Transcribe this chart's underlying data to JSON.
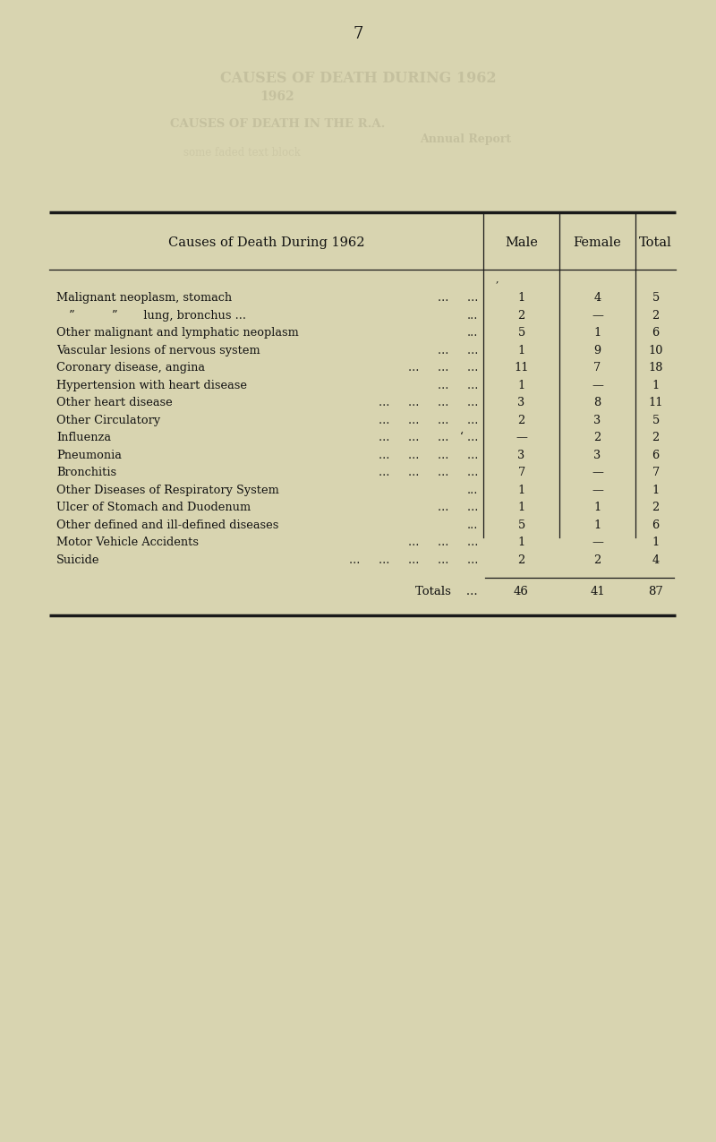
{
  "page_number": "7",
  "title": "Causes of Death During 1962",
  "col_headers": [
    "Male",
    "Female",
    "Total"
  ],
  "rows": [
    {
      "cause": "Malignant neoplasm, stomach",
      "trailing_dots": "...     ...",
      "male": "1",
      "female": "4",
      "total": "5"
    },
    {
      "cause": "”          ”       lung, bronchus ...",
      "trailing_dots": "...",
      "male": "2",
      "female": "—",
      "total": "2"
    },
    {
      "cause": "Other malignant and lymphatic neoplasm",
      "trailing_dots": "...",
      "male": "5",
      "female": "1",
      "total": "6"
    },
    {
      "cause": "Vascular lesions of nervous system",
      "trailing_dots": "...     ...",
      "male": "1",
      "female": "9",
      "total": "10"
    },
    {
      "cause": "Coronary disease, angina",
      "trailing_dots": "...     ...     ...",
      "male": "11",
      "female": "7",
      "total": "18"
    },
    {
      "cause": "Hypertension with heart disease",
      "trailing_dots": "...     ...",
      "male": "1",
      "female": "—",
      "total": "1"
    },
    {
      "cause": "Other heart disease",
      "trailing_dots": "...     ...     ...     ...",
      "male": "3",
      "female": "8",
      "total": "11"
    },
    {
      "cause": "Other Circulatory",
      "trailing_dots": "...     ...     ...     ...",
      "male": "2",
      "female": "3",
      "total": "5"
    },
    {
      "cause": "Influenza",
      "trailing_dots": "...     ...     ...   ‘ ...",
      "male": "—",
      "female": "2",
      "total": "2"
    },
    {
      "cause": "Pneumonia",
      "trailing_dots": "...     ...     ...     ...",
      "male": "3",
      "female": "3",
      "total": "6"
    },
    {
      "cause": "Bronchitis",
      "trailing_dots": "...     ...     ...     ...",
      "male": "7",
      "female": "—",
      "total": "7"
    },
    {
      "cause": "Other Diseases of Respiratory System",
      "trailing_dots": "...",
      "male": "1",
      "female": "—",
      "total": "1"
    },
    {
      "cause": "Ulcer of Stomach and Duodenum",
      "trailing_dots": "...     ...",
      "male": "1",
      "female": "1",
      "total": "2"
    },
    {
      "cause": "Other defined and ill-defined diseases",
      "trailing_dots": "...",
      "male": "5",
      "female": "1",
      "total": "6"
    },
    {
      "cause": "Motor Vehicle Accidents",
      "trailing_dots": "...     ...     ...",
      "male": "1",
      "female": "—",
      "total": "1"
    },
    {
      "cause": "Suicide",
      "trailing_dots": "...     ...     ...     ...     ...",
      "male": "2",
      "female": "2",
      "total": "4"
    }
  ],
  "totals_label": "Totals",
  "totals_dots": "...",
  "totals_male": "46",
  "totals_female": "41",
  "totals_total": "87",
  "bg_color": "#d8d4b0",
  "text_color": "#111111",
  "watermark_lines": [
    "CAUSES OF DEATH DURING 1962",
    "1962",
    "CAUSES OF DEATH IN THE R.A.",
    "Annual Report"
  ]
}
